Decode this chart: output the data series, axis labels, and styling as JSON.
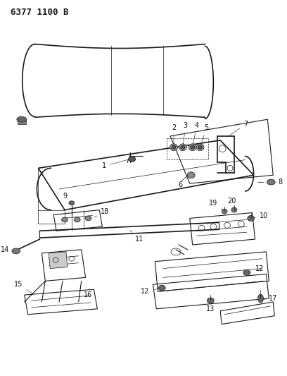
{
  "title": "6377 1100 B",
  "bg_color": "#ffffff",
  "line_color": "#1a1a1a",
  "label_color": "#111111",
  "label_fontsize": 7.0,
  "figsize": [
    4.08,
    5.33
  ],
  "dpi": 100
}
